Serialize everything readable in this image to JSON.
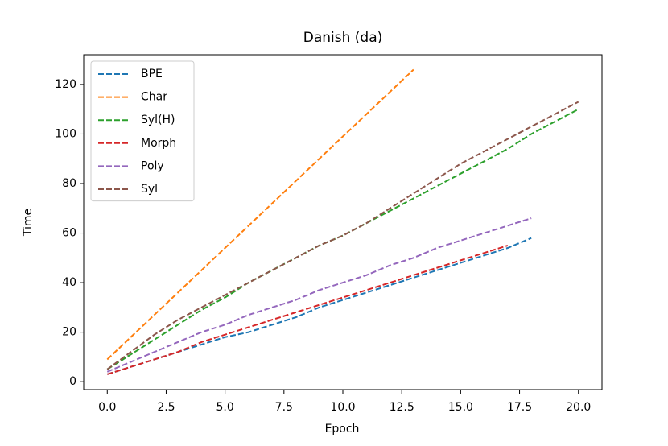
{
  "chart_data": {
    "type": "line",
    "title": "Danish (da)",
    "x_label": "Epoch",
    "y_label": "Time",
    "xlim": [
      -1,
      21
    ],
    "ylim": [
      -3.2,
      132
    ],
    "xticks": [
      {
        "value": 0,
        "label": "0.0"
      },
      {
        "value": 2.5,
        "label": "2.5"
      },
      {
        "value": 5,
        "label": "5.0"
      },
      {
        "value": 7.5,
        "label": "7.5"
      },
      {
        "value": 10,
        "label": "10.0"
      },
      {
        "value": 12.5,
        "label": "12.5"
      },
      {
        "value": 15,
        "label": "15.0"
      },
      {
        "value": 17.5,
        "label": "17.5"
      },
      {
        "value": 20,
        "label": "20.0"
      }
    ],
    "yticks": [
      0,
      20,
      40,
      60,
      80,
      100,
      120
    ],
    "grid": false,
    "legend": "upper left",
    "dashed": true,
    "series": [
      {
        "name": "BPE",
        "color": "#1f77b4",
        "x": [
          0,
          1,
          2,
          3,
          4,
          5,
          6,
          7,
          8,
          9,
          10,
          11,
          12,
          13,
          14,
          15,
          16,
          17,
          18
        ],
        "values": [
          3,
          6,
          9,
          12,
          15,
          18,
          20,
          23,
          26,
          30,
          33,
          36,
          39,
          42,
          45,
          48,
          51,
          54,
          58
        ]
      },
      {
        "name": "Char",
        "color": "#ff7f0e",
        "x": [
          0,
          1,
          2,
          3,
          4,
          5,
          6,
          7,
          8,
          9,
          10,
          11,
          12,
          13
        ],
        "values": [
          9,
          18,
          27,
          36,
          45,
          54,
          63,
          72,
          81,
          90,
          99,
          108,
          117,
          126
        ]
      },
      {
        "name": "Syl(H)",
        "color": "#2ca02c",
        "x": [
          0,
          1,
          2,
          3,
          4,
          5,
          6,
          7,
          8,
          9,
          10,
          11,
          12,
          13,
          14,
          15,
          16,
          17,
          18,
          19,
          20
        ],
        "values": [
          5,
          11,
          17,
          23,
          29,
          34,
          40,
          45,
          50,
          55,
          59,
          64,
          69,
          74,
          79,
          84,
          89,
          94,
          100,
          105,
          110
        ]
      },
      {
        "name": "Morph",
        "color": "#d62728",
        "x": [
          0,
          1,
          2,
          3,
          4,
          5,
          6,
          7,
          8,
          9,
          10,
          11,
          12,
          13,
          14,
          15,
          16,
          17
        ],
        "values": [
          3,
          6,
          9,
          12,
          16,
          19,
          22,
          25,
          28,
          31,
          34,
          37,
          40,
          43,
          46,
          49,
          52,
          55
        ]
      },
      {
        "name": "Poly",
        "color": "#9467bd",
        "x": [
          0,
          1,
          2,
          3,
          4,
          5,
          6,
          7,
          8,
          9,
          10,
          11,
          12,
          13,
          14,
          15,
          16,
          17,
          18
        ],
        "values": [
          4,
          8,
          12,
          16,
          20,
          23,
          27,
          30,
          33,
          37,
          40,
          43,
          47,
          50,
          54,
          57,
          60,
          63,
          66
        ]
      },
      {
        "name": "Syl",
        "color": "#8c564b",
        "x": [
          0,
          1,
          2,
          3,
          4,
          5,
          6,
          7,
          8,
          9,
          10,
          11,
          12,
          13,
          14,
          15,
          16,
          17,
          18,
          19,
          20
        ],
        "values": [
          5,
          12,
          19,
          25,
          30,
          35,
          40,
          45,
          50,
          55,
          59,
          64,
          70,
          76,
          82,
          88,
          93,
          98,
          103,
          108,
          113
        ]
      }
    ]
  }
}
